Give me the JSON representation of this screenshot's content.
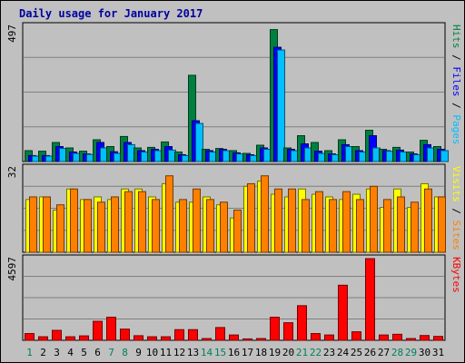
{
  "chart_data": {
    "type": "bar",
    "title": "Daily usage for January 2017",
    "categories": [
      "1",
      "2",
      "3",
      "4",
      "5",
      "6",
      "7",
      "8",
      "9",
      "10",
      "11",
      "12",
      "13",
      "14",
      "15",
      "16",
      "17",
      "18",
      "19",
      "20",
      "21",
      "22",
      "23",
      "24",
      "25",
      "26",
      "27",
      "28",
      "29",
      "30",
      "31"
    ],
    "weekend_days": [
      "1",
      "7",
      "8",
      "14",
      "15",
      "21",
      "22",
      "28",
      "29"
    ],
    "panels": [
      {
        "name": "top",
        "ymax_label": "497",
        "ylim": [
          0,
          497
        ],
        "legend": [
          "Pages",
          "Files",
          "Hits"
        ],
        "series": [
          {
            "name": "Hits",
            "color": "#008040",
            "values": [
              40,
              38,
              70,
              50,
              38,
              80,
              55,
              92,
              50,
              52,
              72,
              35,
              317,
              45,
              48,
              40,
              30,
              60,
              485,
              50,
              95,
              70,
              40,
              80,
              55,
              115,
              45,
              52,
              35,
              78,
              55
            ]
          },
          {
            "name": "Files",
            "color": "#0000ff",
            "values": [
              22,
              22,
              55,
              35,
              28,
              70,
              36,
              70,
              40,
              45,
              55,
              25,
              150,
              40,
              45,
              32,
              25,
              50,
              420,
              45,
              65,
              38,
              28,
              62,
              40,
              95,
              40,
              42,
              28,
              62,
              45
            ]
          },
          {
            "name": "Pages",
            "color": "#00c0ff",
            "values": [
              20,
              20,
              48,
              30,
              26,
              50,
              30,
              62,
              35,
              40,
              42,
              22,
              140,
              35,
              40,
              28,
              22,
              45,
              410,
              40,
              50,
              30,
              25,
              55,
              35,
              50,
              38,
              35,
              25,
              50,
              40
            ]
          }
        ]
      },
      {
        "name": "middle",
        "ymax_label": "32",
        "ylim": [
          0,
          32
        ],
        "legend": [
          "Sites",
          "Visits"
        ],
        "series": [
          {
            "name": "Visits",
            "color": "#ffff00",
            "values": [
              20,
              21,
              16,
              24,
              20,
              21,
              20,
              24,
              24,
              21,
              26,
              19,
              19,
              21,
              18,
              13,
              25,
              27,
              22,
              21,
              24,
              22,
              21,
              20,
              22,
              24,
              17,
              24,
              17,
              26,
              21
            ]
          },
          {
            "name": "Sites",
            "color": "#ff8000",
            "values": [
              21,
              21,
              18,
              24,
              20,
              19,
              21,
              23,
              23,
              20,
              29,
              20,
              24,
              20,
              19,
              16,
              26,
              29,
              24,
              24,
              20,
              23,
              20,
              23,
              20,
              25,
              20,
              21,
              19,
              24,
              21
            ]
          }
        ]
      },
      {
        "name": "bottom",
        "ymax_label": "4597",
        "ylim": [
          0,
          4597
        ],
        "legend": [
          "KBytes"
        ],
        "series": [
          {
            "name": "KBytes",
            "color": "#ff0000",
            "values": [
              380,
              200,
              560,
              200,
              250,
              1070,
              1300,
              630,
              260,
              200,
              200,
              600,
              600,
              100,
              720,
              300,
              80,
              100,
              1300,
              990,
              1950,
              380,
              300,
              3100,
              480,
              4597,
              300,
              340,
              100,
              270,
              220
            ]
          }
        ]
      }
    ]
  }
}
